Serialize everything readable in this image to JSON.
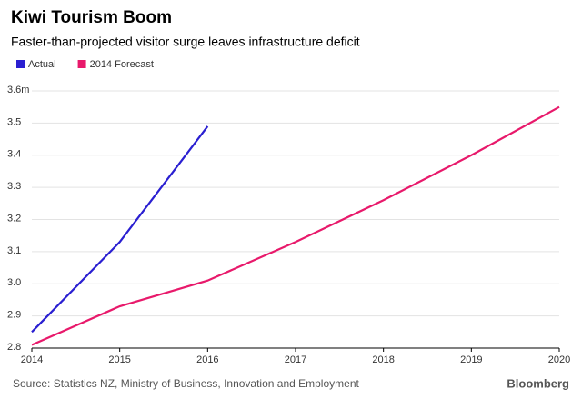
{
  "chart_data": {
    "type": "line",
    "title": "Kiwi Tourism Boom",
    "subtitle": "Faster-than-projected visitor surge leaves infrastructure deficit",
    "x": [
      2014,
      2015,
      2016,
      2017,
      2018,
      2019,
      2020
    ],
    "series": [
      {
        "name": "Actual",
        "color": "#2a1fd1",
        "values": [
          2.85,
          3.13,
          3.49,
          null,
          null,
          null,
          null
        ]
      },
      {
        "name": "2014 Forecast",
        "color": "#e8196b",
        "values": [
          2.81,
          2.93,
          3.01,
          3.13,
          3.26,
          3.4,
          3.55
        ]
      }
    ],
    "xlim": [
      2014,
      2020
    ],
    "xticks": [
      2014,
      2015,
      2016,
      2017,
      2018,
      2019,
      2020
    ],
    "ylim": [
      2.8,
      3.6
    ],
    "yticks": [
      2.8,
      2.9,
      {
        "value": 3,
        "label": "3.0"
      },
      3.1,
      3.2,
      3.3,
      3.4,
      3.5,
      {
        "value": 3.6,
        "label": "3.6m"
      }
    ],
    "grid": true,
    "source": "Source: Statistics NZ, Ministry of Business, Innovation and Employment",
    "logo": "Bloomberg"
  }
}
